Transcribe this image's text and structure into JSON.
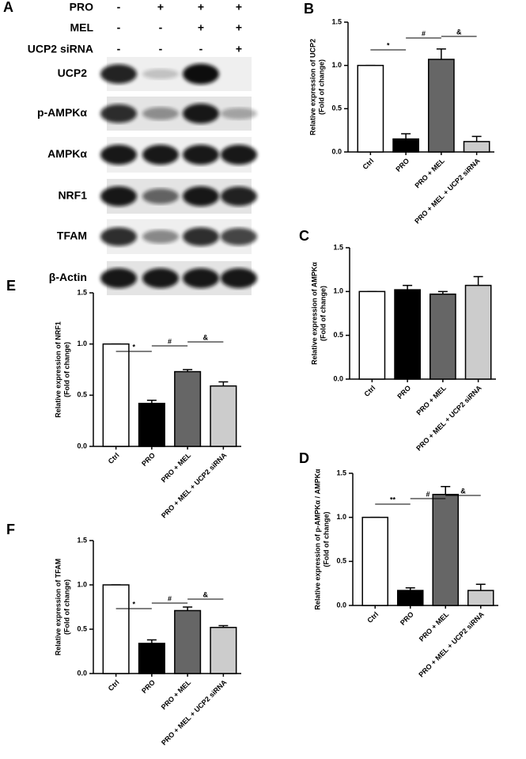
{
  "blot": {
    "letter": "A",
    "treatments": [
      {
        "name": "PRO",
        "signs": [
          "-",
          "+",
          "+",
          "+"
        ]
      },
      {
        "name": "MEL",
        "signs": [
          "-",
          "-",
          "+",
          "+"
        ]
      },
      {
        "name": "UCP2 siRNA",
        "signs": [
          "-",
          "-",
          "-",
          "+"
        ]
      }
    ],
    "bands": [
      "UCP2",
      "p-AMPKα",
      "AMPKα",
      "NRF1",
      "TFAM",
      "β-Actin"
    ]
  },
  "chart_data": [
    {
      "type": "bar",
      "letter": "B",
      "ylabel": [
        "Relative expression of UCP2",
        "(Fold of change)"
      ],
      "categories": [
        "Ctrl",
        "PRO",
        "PRO + MEL",
        "PRO + MEL + UCP2 siRNA"
      ],
      "values": [
        1.0,
        0.15,
        1.07,
        0.12
      ],
      "errors": [
        0,
        0.06,
        0.12,
        0.06
      ],
      "colors": [
        "#ffffff",
        "#000000",
        "#666666",
        "#cccccc"
      ],
      "ylim": [
        0,
        1.5
      ],
      "yticks": [
        {
          "value": 0,
          "label": "0.0"
        },
        0.5,
        {
          "value": 1,
          "label": "1.0"
        },
        1.5
      ],
      "annotations": [
        "*",
        "#",
        "&"
      ]
    },
    {
      "type": "bar",
      "letter": "C",
      "ylabel": [
        "Relative expression of AMPKα",
        "(Fold of change)"
      ],
      "categories": [
        "Ctrl",
        "PRO",
        "PRO + MEL",
        "PRO + MEL + UCP2 siRNA"
      ],
      "values": [
        1.0,
        1.02,
        0.97,
        1.07
      ],
      "errors": [
        0,
        0.05,
        0.03,
        0.1
      ],
      "colors": [
        "#ffffff",
        "#000000",
        "#666666",
        "#cccccc"
      ],
      "ylim": [
        0,
        1.5
      ],
      "yticks": [
        {
          "value": 0,
          "label": "0.0"
        },
        0.5,
        {
          "value": 1,
          "label": "1.0"
        },
        1.5
      ]
    },
    {
      "type": "bar",
      "letter": "D",
      "ylabel": [
        "Relative expression of p-AMPKα / AMPKα",
        "(Fold of change)"
      ],
      "categories": [
        "Ctrl",
        "PRO",
        "PRO + MEL",
        "PRO + MEL + UCP2 siRNA"
      ],
      "values": [
        1.0,
        0.17,
        1.26,
        0.17
      ],
      "errors": [
        0,
        0.03,
        0.09,
        0.07
      ],
      "colors": [
        "#ffffff",
        "#000000",
        "#666666",
        "#cccccc"
      ],
      "ylim": [
        0,
        1.5
      ],
      "yticks": [
        {
          "value": 0,
          "label": "0.0"
        },
        0.5,
        {
          "value": 1,
          "label": "1.0"
        },
        1.5
      ],
      "annotations": [
        "**",
        "#",
        "&"
      ]
    },
    {
      "type": "bar",
      "letter": "E",
      "ylabel": [
        "Relative expression of NRF1",
        "(Fold of change)"
      ],
      "categories": [
        "Ctrl",
        "PRO",
        "PRO + MEL",
        "PRO + MEL + UCP2 siRNA"
      ],
      "values": [
        1.0,
        0.42,
        0.73,
        0.59
      ],
      "errors": [
        0,
        0.03,
        0.02,
        0.04
      ],
      "colors": [
        "#ffffff",
        "#000000",
        "#666666",
        "#cccccc"
      ],
      "ylim": [
        0,
        1.5
      ],
      "yticks": [
        {
          "value": 0,
          "label": "0.0"
        },
        0.5,
        {
          "value": 1,
          "label": "1.0"
        },
        1.5
      ],
      "annotations": [
        "*",
        "#",
        "&"
      ]
    },
    {
      "type": "bar",
      "letter": "F",
      "ylabel": [
        "Relative expression of TFAM",
        "(Fold of change)"
      ],
      "categories": [
        "Ctrl",
        "PRO",
        "PRO + MEL",
        "PRO + MEL + UCP2 siRNA"
      ],
      "values": [
        1.0,
        0.34,
        0.71,
        0.52
      ],
      "errors": [
        0,
        0.04,
        0.04,
        0.02
      ],
      "colors": [
        "#ffffff",
        "#000000",
        "#666666",
        "#cccccc"
      ],
      "ylim": [
        0,
        1.5
      ],
      "yticks": [
        {
          "value": 0,
          "label": "0.0"
        },
        0.5,
        {
          "value": 1,
          "label": "1.0"
        },
        1.5
      ],
      "annotations": [
        "*",
        "#",
        "&"
      ]
    }
  ]
}
